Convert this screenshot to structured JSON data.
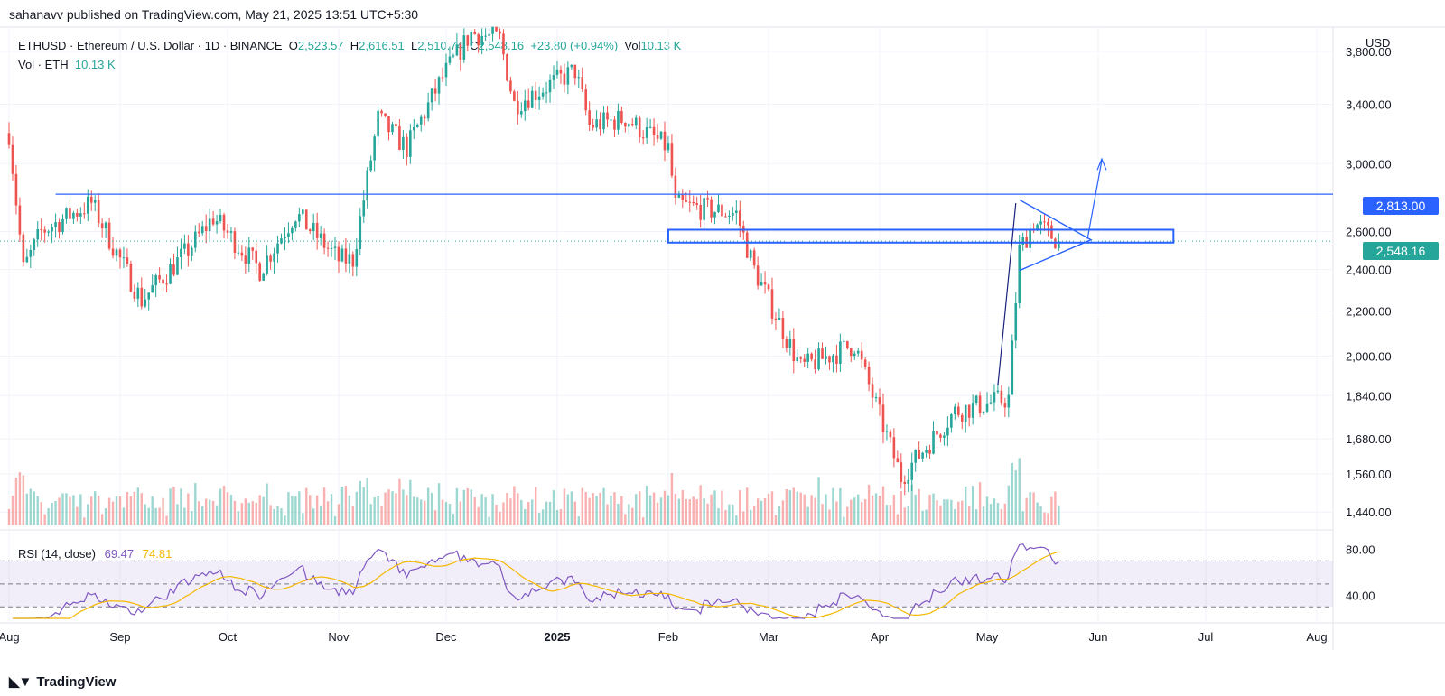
{
  "header": {
    "credit": "sahanavv published on TradingView.com, May 21, 2025 13:51 UTC+5:30"
  },
  "legend": {
    "symbol": "ETHUSD · Ethereum / U.S. Dollar · 1D · BINANCE",
    "o_label": "O",
    "o_value": "2,523.57",
    "h_label": "H",
    "h_value": "2,616.51",
    "l_label": "L",
    "l_value": "2,510.74",
    "c_label": "C",
    "c_value": "2,548.16",
    "change": "+23.80 (+0.94%)",
    "vol_label": "Vol",
    "vol_value": "10.13 K",
    "vol_row_label": "Vol · ETH",
    "vol_row_value": "10.13 K"
  },
  "rsi_legend": {
    "label": "RSI (14, close)",
    "rsi": "69.47",
    "ma": "74.81"
  },
  "price_axis": {
    "currency": "USD",
    "ticks": [
      "3,800.00",
      "3,400.00",
      "3,000.00",
      "2,600.00",
      "2,400.00",
      "2,200.00",
      "2,000.00",
      "1,840.00",
      "1,680.00",
      "1,560.00",
      "1,440.00"
    ],
    "resistance_tag": "2,813.00",
    "last_price_tag": "2,548.16"
  },
  "rsi_axis": {
    "ticks": [
      "80.00",
      "40.00"
    ]
  },
  "time_axis": {
    "ticks": [
      "Aug",
      "Sep",
      "Oct",
      "Nov",
      "Dec",
      "2025",
      "Feb",
      "Mar",
      "Apr",
      "May",
      "Jun",
      "Jul",
      "Aug"
    ]
  },
  "footer": {
    "brand": "TradingView"
  },
  "colors": {
    "up": "#26a69a",
    "down": "#ef5350",
    "line": "#2962ff",
    "rsi": "#7e57c2",
    "rsi_ma": "#f5b800"
  },
  "chart_data": {
    "type": "candlestick",
    "symbol": "ETHUSD",
    "interval": "1D",
    "y_scale": "log",
    "ylim": [
      1400,
      4000
    ],
    "resistance_level": 2813,
    "last_close": 2548.16,
    "support_zone": [
      2540,
      2610
    ],
    "close_path": [
      {
        "date": "2024-08-01",
        "close": 3200
      },
      {
        "date": "2024-08-05",
        "close": 2400
      },
      {
        "date": "2024-08-10",
        "close": 2600
      },
      {
        "date": "2024-08-24",
        "close": 2760
      },
      {
        "date": "2024-09-01",
        "close": 2450
      },
      {
        "date": "2024-09-07",
        "close": 2250
      },
      {
        "date": "2024-09-20",
        "close": 2500
      },
      {
        "date": "2024-09-27",
        "close": 2680
      },
      {
        "date": "2024-10-10",
        "close": 2400
      },
      {
        "date": "2024-10-20",
        "close": 2700
      },
      {
        "date": "2024-11-01",
        "close": 2450
      },
      {
        "date": "2024-11-05",
        "close": 2450
      },
      {
        "date": "2024-11-12",
        "close": 3300
      },
      {
        "date": "2024-11-20",
        "close": 3100
      },
      {
        "date": "2024-11-30",
        "close": 3600
      },
      {
        "date": "2024-12-08",
        "close": 3950
      },
      {
        "date": "2024-12-16",
        "close": 3900
      },
      {
        "date": "2024-12-20",
        "close": 3400
      },
      {
        "date": "2025-01-06",
        "close": 3650
      },
      {
        "date": "2025-01-10",
        "close": 3250
      },
      {
        "date": "2025-01-20",
        "close": 3300
      },
      {
        "date": "2025-02-01",
        "close": 3100
      },
      {
        "date": "2025-02-03",
        "close": 2750
      },
      {
        "date": "2025-02-20",
        "close": 2700
      },
      {
        "date": "2025-02-25",
        "close": 2400
      },
      {
        "date": "2025-03-10",
        "close": 1950
      },
      {
        "date": "2025-03-25",
        "close": 2050
      },
      {
        "date": "2025-04-07",
        "close": 1550
      },
      {
        "date": "2025-04-22",
        "close": 1780
      },
      {
        "date": "2025-05-07",
        "close": 1830
      },
      {
        "date": "2025-05-10",
        "close": 2500
      },
      {
        "date": "2025-05-14",
        "close": 2650
      },
      {
        "date": "2025-05-21",
        "close": 2548.16
      }
    ],
    "rsi": {
      "length": 14,
      "last": 69.47,
      "ma_last": 74.81,
      "overbought": 70,
      "oversold": 30,
      "range": [
        20,
        90
      ]
    }
  }
}
